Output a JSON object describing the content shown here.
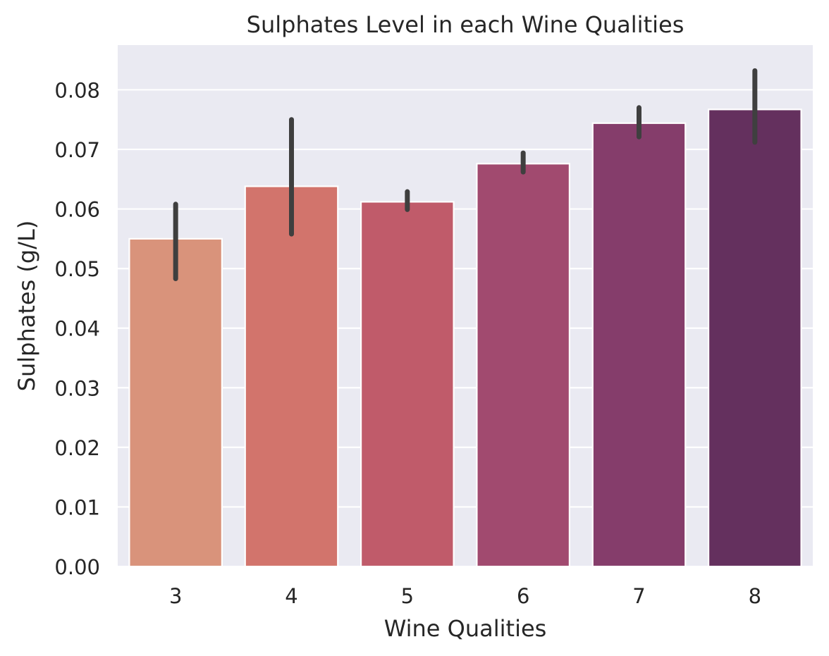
{
  "chart_data": {
    "type": "bar",
    "title": "Sulphates Level in each Wine Qualities",
    "xlabel": "Wine Qualities",
    "ylabel": "Sulphates (g/L)",
    "categories": [
      "3",
      "4",
      "5",
      "6",
      "7",
      "8"
    ],
    "values": [
      0.055,
      0.0638,
      0.0612,
      0.0676,
      0.0744,
      0.0767
    ],
    "error_low": [
      0.0483,
      0.0558,
      0.0599,
      0.0662,
      0.0721,
      0.0712
    ],
    "error_high": [
      0.0608,
      0.075,
      0.0629,
      0.0694,
      0.077,
      0.0832
    ],
    "colors": [
      "#d9937b",
      "#d2746c",
      "#c05b6a",
      "#a14a6f",
      "#853d6b",
      "#64305e"
    ],
    "error_color": "#3f3f3f",
    "ylim": [
      0,
      0.0875
    ],
    "yticks": [
      "0.00",
      "0.01",
      "0.02",
      "0.03",
      "0.04",
      "0.05",
      "0.06",
      "0.07",
      "0.08"
    ],
    "grid": true,
    "background": "#eaeaf2",
    "legend": "none"
  }
}
